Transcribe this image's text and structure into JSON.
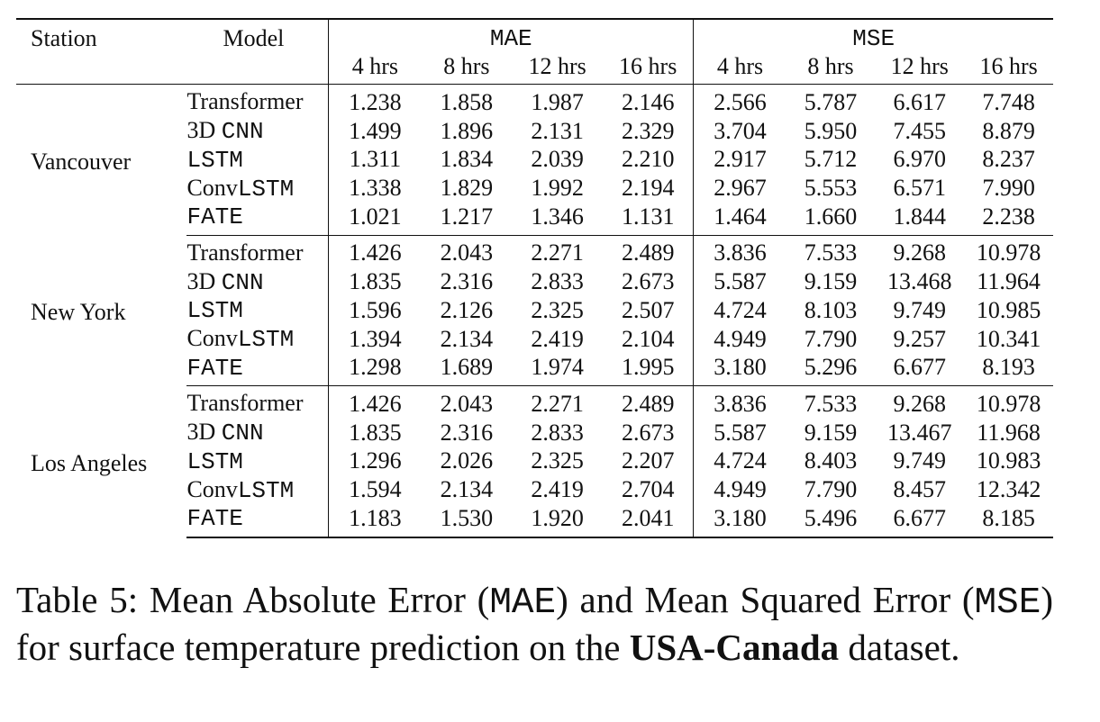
{
  "table": {
    "header": {
      "station": "Station",
      "model": "Model",
      "group_mae": "MAE",
      "group_mse": "MSE",
      "horizons": [
        "4 hrs",
        "8 hrs",
        "12 hrs",
        "16 hrs"
      ]
    },
    "groups": [
      {
        "station": "Vancouver",
        "rows": [
          {
            "model_serif": "Transformer",
            "model_mono": "",
            "mae": [
              "1.238",
              "1.858",
              "1.987",
              "2.146"
            ],
            "mse": [
              "2.566",
              "5.787",
              "6.617",
              "7.748"
            ]
          },
          {
            "model_serif": "3D ",
            "model_mono": "CNN",
            "mae": [
              "1.499",
              "1.896",
              "2.131",
              "2.329"
            ],
            "mse": [
              "3.704",
              "5.950",
              "7.455",
              "8.879"
            ]
          },
          {
            "model_serif": "",
            "model_mono": "LSTM",
            "mae": [
              "1.311",
              "1.834",
              "2.039",
              "2.210"
            ],
            "mse": [
              "2.917",
              "5.712",
              "6.970",
              "8.237"
            ]
          },
          {
            "model_serif": "Conv",
            "model_mono": "LSTM",
            "mae": [
              "1.338",
              "1.829",
              "1.992",
              "2.194"
            ],
            "mse": [
              "2.967",
              "5.553",
              "6.571",
              "7.990"
            ]
          },
          {
            "model_serif": "",
            "model_mono": "FATE",
            "mae": [
              "1.021",
              "1.217",
              "1.346",
              "1.131"
            ],
            "mse": [
              "1.464",
              "1.660",
              "1.844",
              "2.238"
            ]
          }
        ]
      },
      {
        "station": "New York",
        "rows": [
          {
            "model_serif": "Transformer",
            "model_mono": "",
            "mae": [
              "1.426",
              "2.043",
              "2.271",
              "2.489"
            ],
            "mse": [
              "3.836",
              "7.533",
              "9.268",
              "10.978"
            ]
          },
          {
            "model_serif": "3D ",
            "model_mono": "CNN",
            "mae": [
              "1.835",
              "2.316",
              "2.833",
              "2.673"
            ],
            "mse": [
              "5.587",
              "9.159",
              "13.468",
              "11.964"
            ]
          },
          {
            "model_serif": "",
            "model_mono": "LSTM",
            "mae": [
              "1.596",
              "2.126",
              "2.325",
              "2.507"
            ],
            "mse": [
              "4.724",
              "8.103",
              "9.749",
              "10.985"
            ]
          },
          {
            "model_serif": "Conv",
            "model_mono": "LSTM",
            "mae": [
              "1.394",
              "2.134",
              "2.419",
              "2.104"
            ],
            "mse": [
              "4.949",
              "7.790",
              "9.257",
              "10.341"
            ]
          },
          {
            "model_serif": "",
            "model_mono": "FATE",
            "mae": [
              "1.298",
              "1.689",
              "1.974",
              "1.995"
            ],
            "mse": [
              "3.180",
              "5.296",
              "6.677",
              "8.193"
            ]
          }
        ]
      },
      {
        "station": "Los Angeles",
        "rows": [
          {
            "model_serif": "Transformer",
            "model_mono": "",
            "mae": [
              "1.426",
              "2.043",
              "2.271",
              "2.489"
            ],
            "mse": [
              "3.836",
              "7.533",
              "9.268",
              "10.978"
            ]
          },
          {
            "model_serif": "3D ",
            "model_mono": "CNN",
            "mae": [
              "1.835",
              "2.316",
              "2.833",
              "2.673"
            ],
            "mse": [
              "5.587",
              "9.159",
              "13.467",
              "11.968"
            ]
          },
          {
            "model_serif": "",
            "model_mono": "LSTM",
            "mae": [
              "1.296",
              "2.026",
              "2.325",
              "2.207"
            ],
            "mse": [
              "4.724",
              "8.403",
              "9.749",
              "10.983"
            ]
          },
          {
            "model_serif": "Conv",
            "model_mono": "LSTM",
            "mae": [
              "1.594",
              "2.134",
              "2.419",
              "2.704"
            ],
            "mse": [
              "4.949",
              "7.790",
              "8.457",
              "12.342"
            ]
          },
          {
            "model_serif": "",
            "model_mono": "FATE",
            "mae": [
              "1.183",
              "1.530",
              "1.920",
              "2.041"
            ],
            "mse": [
              "3.180",
              "5.496",
              "6.677",
              "8.185"
            ]
          }
        ]
      }
    ]
  },
  "caption": {
    "label": "Table 5:",
    "t1": " Mean Absolute Error (",
    "c1": "MAE",
    "t2": ") and Mean Squared Error (",
    "c2": "MSE",
    "t3": ") for surface temperature prediction on the ",
    "dataset": "USA-Canada",
    "t4": " dataset."
  }
}
